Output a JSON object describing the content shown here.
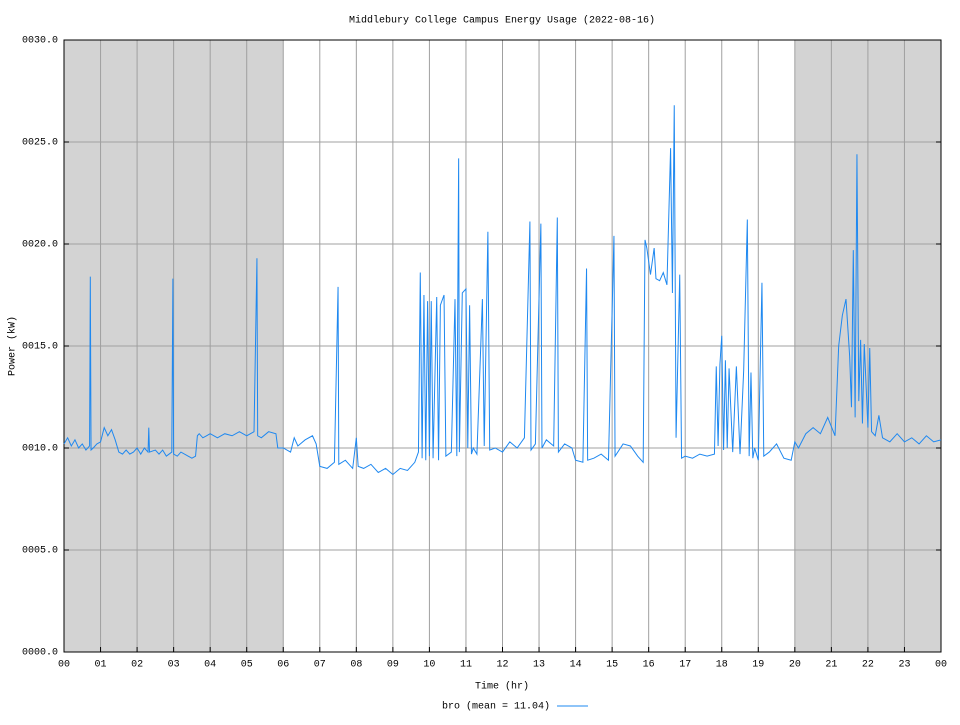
{
  "chart_data": {
    "type": "line",
    "title": "Middlebury College Campus Energy Usage (2022-08-16)",
    "x_label": "Time (hr)",
    "y_label": "Power (kW)",
    "xlim": [
      0,
      24
    ],
    "ylim": [
      0,
      30
    ],
    "xticks": [
      {
        "value": 0,
        "label": "00"
      },
      {
        "value": 1,
        "label": "01"
      },
      {
        "value": 2,
        "label": "02"
      },
      {
        "value": 3,
        "label": "03"
      },
      {
        "value": 4,
        "label": "04"
      },
      {
        "value": 5,
        "label": "05"
      },
      {
        "value": 6,
        "label": "06"
      },
      {
        "value": 7,
        "label": "07"
      },
      {
        "value": 8,
        "label": "08"
      },
      {
        "value": 9,
        "label": "09"
      },
      {
        "value": 10,
        "label": "10"
      },
      {
        "value": 11,
        "label": "11"
      },
      {
        "value": 12,
        "label": "12"
      },
      {
        "value": 13,
        "label": "13"
      },
      {
        "value": 14,
        "label": "14"
      },
      {
        "value": 15,
        "label": "15"
      },
      {
        "value": 16,
        "label": "16"
      },
      {
        "value": 17,
        "label": "17"
      },
      {
        "value": 18,
        "label": "18"
      },
      {
        "value": 19,
        "label": "19"
      },
      {
        "value": 20,
        "label": "20"
      },
      {
        "value": 21,
        "label": "21"
      },
      {
        "value": 22,
        "label": "22"
      },
      {
        "value": 23,
        "label": "23"
      },
      {
        "value": 24,
        "label": "00"
      }
    ],
    "yticks": [
      {
        "value": 0,
        "label": "0000.0"
      },
      {
        "value": 5,
        "label": "0005.0"
      },
      {
        "value": 10,
        "label": "0010.0"
      },
      {
        "value": 15,
        "label": "0015.0"
      },
      {
        "value": 20,
        "label": "0020.0"
      },
      {
        "value": 25,
        "label": "0025.0"
      },
      {
        "value": 30,
        "label": "0030.0"
      }
    ],
    "grid": true,
    "shaded_x_ranges": [
      [
        0,
        6
      ],
      [
        20,
        24
      ]
    ],
    "shade_color": "#d3d3d3",
    "legend": "bottom",
    "x": [
      0.0,
      0.1,
      0.2,
      0.3,
      0.4,
      0.5,
      0.6,
      0.7,
      0.72,
      0.74,
      0.8,
      0.9,
      1.0,
      1.1,
      1.2,
      1.3,
      1.4,
      1.5,
      1.6,
      1.7,
      1.8,
      1.9,
      2.0,
      2.1,
      2.2,
      2.3,
      2.32,
      2.34,
      2.5,
      2.6,
      2.7,
      2.8,
      2.95,
      2.98,
      3.0,
      3.1,
      3.2,
      3.4,
      3.5,
      3.6,
      3.65,
      3.7,
      3.8,
      3.9,
      4.0,
      4.2,
      4.4,
      4.6,
      4.8,
      5.0,
      5.2,
      5.28,
      5.3,
      5.4,
      5.6,
      5.8,
      5.85,
      6.0,
      6.2,
      6.3,
      6.4,
      6.6,
      6.8,
      6.9,
      7.0,
      7.2,
      7.4,
      7.5,
      7.52,
      7.7,
      7.9,
      8.0,
      8.05,
      8.2,
      8.4,
      8.6,
      8.8,
      9.0,
      9.2,
      9.4,
      9.6,
      9.7,
      9.75,
      9.8,
      9.85,
      9.9,
      9.95,
      10.0,
      10.05,
      10.1,
      10.2,
      10.25,
      10.3,
      10.4,
      10.45,
      10.6,
      10.7,
      10.75,
      10.8,
      10.82,
      10.9,
      11.0,
      11.05,
      11.1,
      11.15,
      11.2,
      11.3,
      11.45,
      11.5,
      11.6,
      11.65,
      11.8,
      12.0,
      12.2,
      12.4,
      12.6,
      12.75,
      12.78,
      12.9,
      13.05,
      13.08,
      13.2,
      13.4,
      13.5,
      13.53,
      13.7,
      13.9,
      14.0,
      14.2,
      14.3,
      14.33,
      14.5,
      14.7,
      14.9,
      15.05,
      15.08,
      15.3,
      15.5,
      15.7,
      15.85,
      15.9,
      15.95,
      16.05,
      16.15,
      16.2,
      16.3,
      16.4,
      16.5,
      16.6,
      16.65,
      16.7,
      16.75,
      16.85,
      16.9,
      17.0,
      17.2,
      17.4,
      17.6,
      17.8,
      17.85,
      17.9,
      17.95,
      18.0,
      18.05,
      18.1,
      18.15,
      18.2,
      18.3,
      18.4,
      18.5,
      18.6,
      18.7,
      18.75,
      18.8,
      18.85,
      18.9,
      19.0,
      19.1,
      19.15,
      19.3,
      19.5,
      19.7,
      19.9,
      20.0,
      20.1,
      20.3,
      20.5,
      20.7,
      20.9,
      21.1,
      21.2,
      21.3,
      21.4,
      21.5,
      21.55,
      21.6,
      21.65,
      21.7,
      21.75,
      21.8,
      21.85,
      21.9,
      22.0,
      22.05,
      22.1,
      22.2,
      22.3,
      22.4,
      22.6,
      22.8,
      23.0,
      23.2,
      23.4,
      23.6,
      23.8,
      24.0
    ],
    "series": [
      {
        "name": "bro (mean = 11.04)",
        "color": "#1e88f0",
        "values": [
          10.2,
          10.5,
          10.1,
          10.4,
          10.0,
          10.2,
          9.9,
          10.1,
          18.4,
          9.9,
          10.0,
          10.2,
          10.3,
          11.0,
          10.6,
          10.9,
          10.4,
          9.8,
          9.7,
          9.9,
          9.7,
          9.8,
          10.0,
          9.7,
          10.0,
          9.8,
          11.0,
          9.8,
          9.9,
          9.7,
          9.9,
          9.6,
          9.8,
          18.3,
          9.7,
          9.6,
          9.8,
          9.6,
          9.5,
          9.6,
          10.6,
          10.7,
          10.5,
          10.6,
          10.7,
          10.5,
          10.7,
          10.6,
          10.8,
          10.6,
          10.8,
          19.3,
          10.6,
          10.5,
          10.8,
          10.7,
          10.0,
          10.0,
          9.8,
          10.5,
          10.1,
          10.4,
          10.6,
          10.2,
          9.1,
          9.0,
          9.3,
          17.9,
          9.2,
          9.4,
          9.0,
          10.5,
          9.1,
          9.0,
          9.2,
          8.8,
          9.0,
          8.7,
          9.0,
          8.9,
          9.3,
          9.8,
          18.6,
          9.5,
          17.5,
          9.4,
          17.2,
          9.6,
          17.2,
          9.5,
          17.4,
          9.4,
          17.0,
          17.5,
          9.6,
          9.8,
          17.3,
          9.6,
          24.2,
          9.8,
          17.6,
          17.8,
          10.0,
          17.0,
          9.7,
          10.0,
          9.7,
          17.3,
          10.1,
          20.6,
          9.9,
          10.0,
          9.8,
          10.3,
          10.0,
          10.5,
          21.1,
          9.9,
          10.2,
          21.0,
          10.0,
          10.4,
          10.1,
          21.3,
          9.8,
          10.2,
          10.0,
          9.4,
          9.3,
          18.8,
          9.4,
          9.5,
          9.7,
          9.4,
          20.4,
          9.6,
          10.2,
          10.1,
          9.6,
          9.3,
          20.2,
          19.8,
          18.5,
          19.8,
          18.3,
          18.2,
          18.6,
          18.0,
          24.7,
          17.6,
          26.8,
          10.5,
          18.5,
          9.5,
          9.6,
          9.5,
          9.7,
          9.6,
          9.7,
          14.0,
          10.1,
          14.1,
          15.5,
          9.9,
          14.3,
          10.0,
          13.9,
          9.8,
          14.0,
          9.7,
          13.8,
          21.2,
          9.6,
          13.7,
          9.5,
          10.0,
          9.4,
          18.1,
          9.6,
          9.8,
          10.2,
          9.5,
          9.4,
          10.3,
          10.0,
          10.7,
          11.0,
          10.7,
          11.5,
          10.6,
          15.0,
          16.5,
          17.3,
          14.5,
          12.0,
          19.7,
          11.5,
          24.4,
          12.3,
          15.3,
          11.2,
          15.1,
          11.0,
          14.9,
          10.8,
          10.6,
          11.6,
          10.5,
          10.3,
          10.7,
          10.3,
          10.5,
          10.2,
          10.6,
          10.3,
          10.4
        ]
      }
    ]
  }
}
